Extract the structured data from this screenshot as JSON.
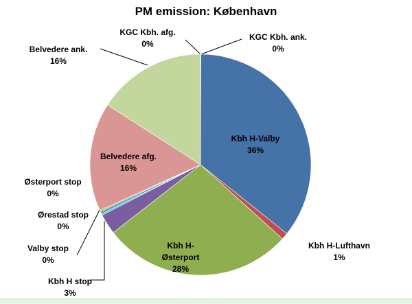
{
  "chart_data": {
    "type": "pie",
    "title": "PM emission: København",
    "categories": [
      "KGC Kbh. ank.",
      "Kbh H-Valby",
      "Kbh H-Lufthavn",
      "Kbh H-Østerport",
      "Kbh H stop",
      "Valby stop",
      "Ørestad stop",
      "Østerport stop",
      "Belvedere afg.",
      "Belvedere ank.",
      "KGC Kbh. afg."
    ],
    "values": [
      0.05,
      36,
      1,
      28,
      3,
      0.2,
      0.4,
      0.2,
      16,
      16,
      0.05
    ],
    "value_labels": [
      "0%",
      "36%",
      "1%",
      "28%",
      "3%",
      "0%",
      "0%",
      "0%",
      "16%",
      "16%",
      "0%"
    ],
    "colors": [
      "#4F81BD",
      "#4572A7",
      "#C0504D",
      "#8FAE50",
      "#7B5EA2",
      "#4BACC6",
      "#4BACC6",
      "#F79646",
      "#D99694",
      "#C3D69B",
      "#8EB4E3"
    ]
  }
}
